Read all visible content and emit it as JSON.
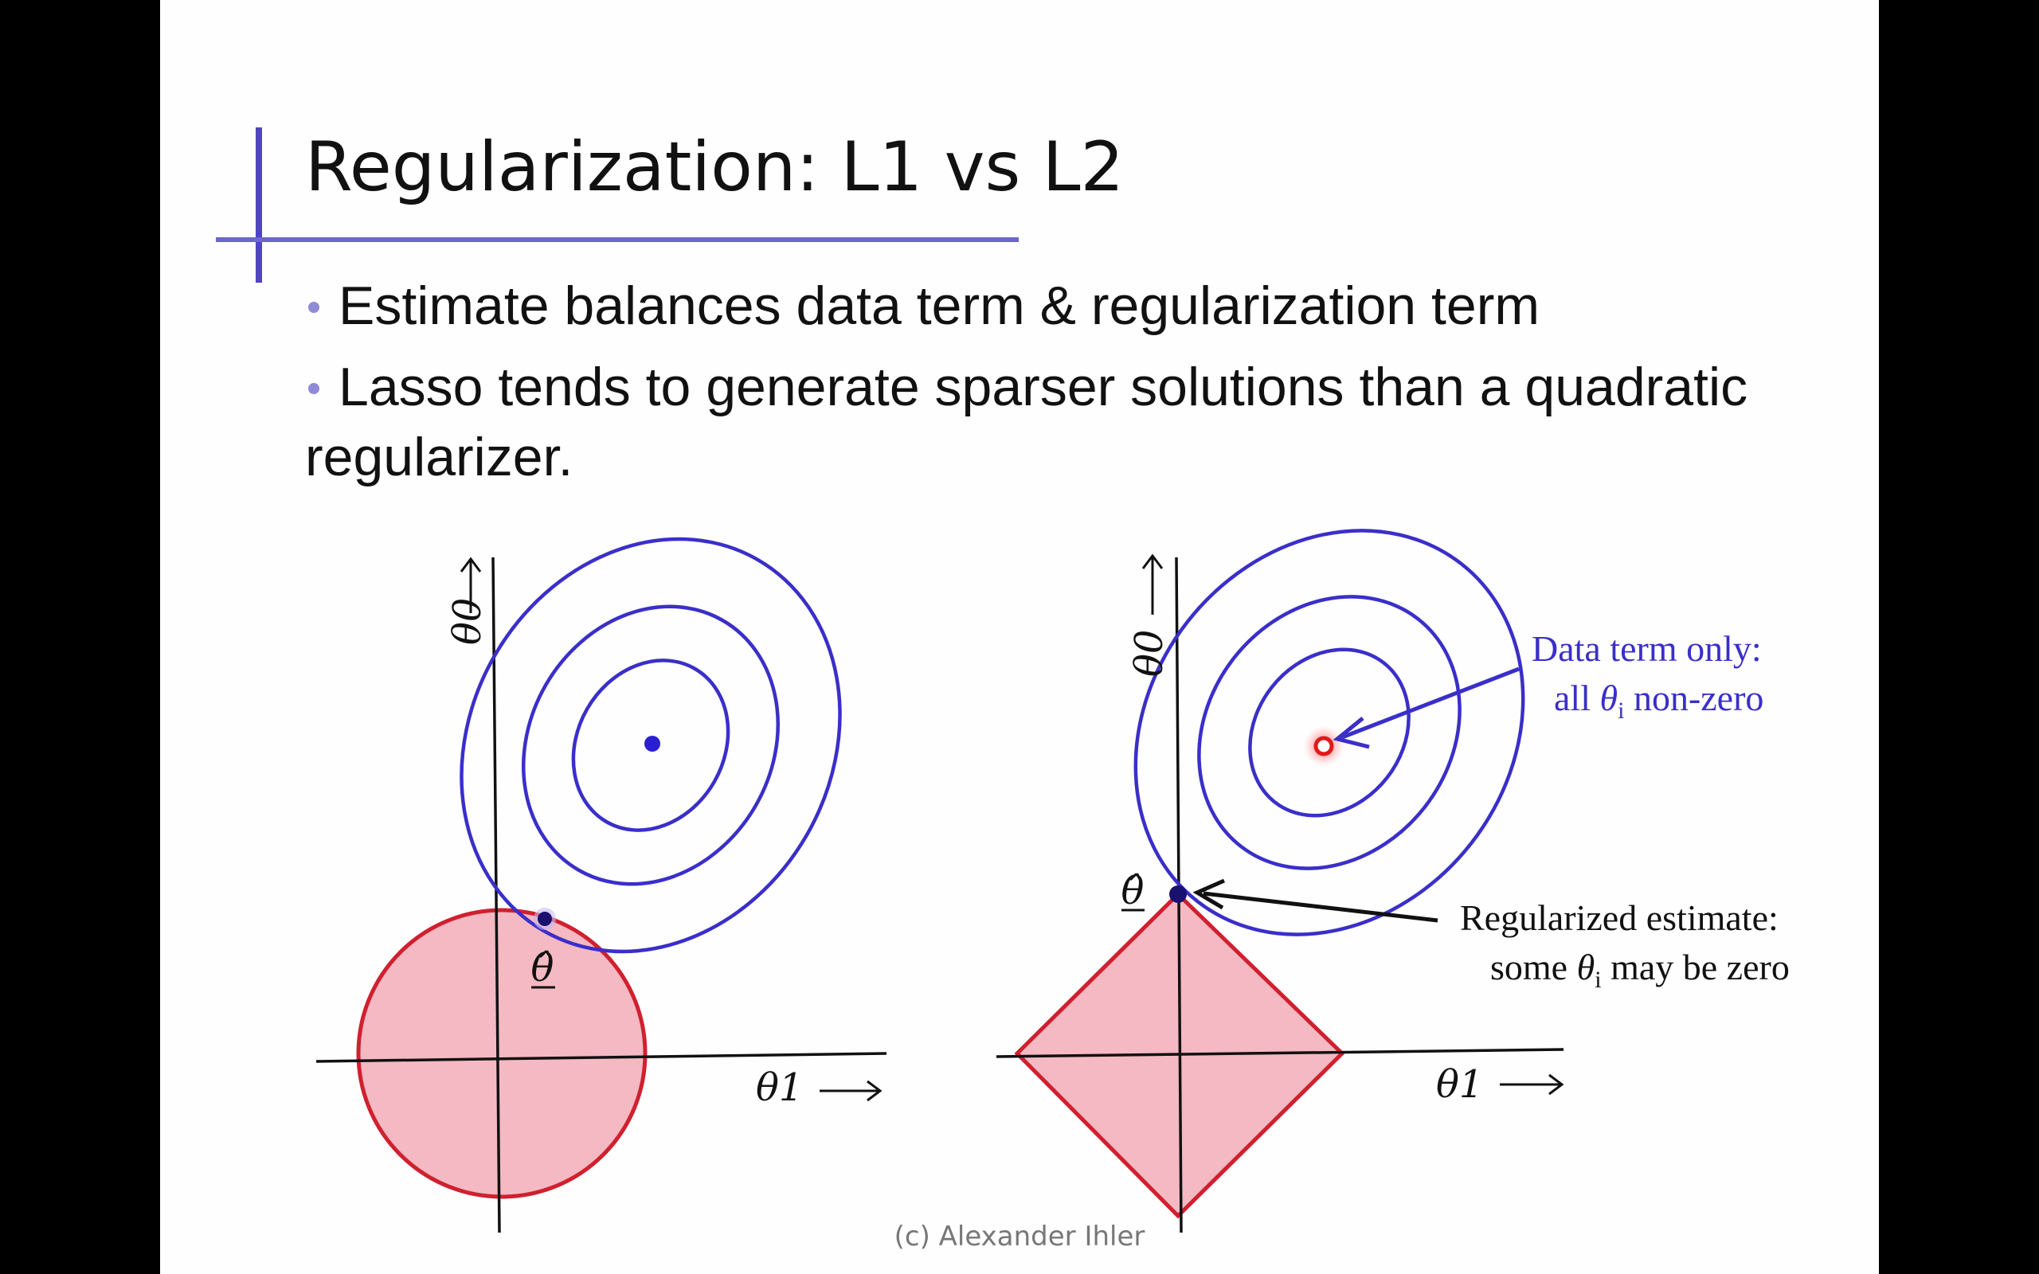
{
  "slide": {
    "title": "Regularization: L1 vs L2",
    "bullets": [
      "Estimate balances data term & regularization term",
      "Lasso tends to generate sparser solutions than a quadratic regularizer."
    ],
    "footer": "(c) Alexander Ihler"
  },
  "diagram": {
    "left_panel": {
      "y_axis_label": "θ0",
      "x_axis_label": "θ1",
      "estimate_label": "θ̂"
    },
    "right_panel": {
      "y_axis_label": "θ0",
      "x_axis_label": "θ1",
      "estimate_label": "θ̂",
      "annotation_data_term": {
        "line1": "Data term only:",
        "line2_prefix": "all ",
        "line2_symbol": "θ",
        "line2_sub": "i",
        "line2_suffix": " non-zero"
      },
      "annotation_regularized": {
        "line1": "Regularized estimate:",
        "line2_prefix": "some ",
        "line2_symbol": "θ",
        "line2_sub": "i",
        "line2_suffix": " may be zero"
      }
    },
    "colors": {
      "contour": "#3a2fc9",
      "region_fill": "#f4b9c2",
      "region_stroke": "#d0202f",
      "axis": "#111111",
      "annotation_text": "#3a2fc9",
      "title_accent": "#4f44c2"
    }
  }
}
